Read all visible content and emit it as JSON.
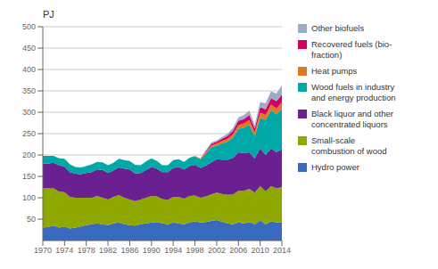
{
  "chart_data": {
    "type": "area",
    "stacked": true,
    "ylabel": "PJ",
    "grid": true,
    "legend": "right",
    "x": [
      1970,
      1971,
      1972,
      1973,
      1974,
      1975,
      1976,
      1977,
      1978,
      1979,
      1980,
      1981,
      1982,
      1983,
      1984,
      1985,
      1986,
      1987,
      1988,
      1989,
      1990,
      1991,
      1992,
      1993,
      1994,
      1995,
      1996,
      1997,
      1998,
      1999,
      2000,
      2001,
      2002,
      2003,
      2004,
      2005,
      2006,
      2007,
      2008,
      2009,
      2010,
      2011,
      2012,
      2013,
      2014
    ],
    "xlim": [
      1970,
      2014
    ],
    "xticks": [
      1970,
      1974,
      1978,
      1982,
      1986,
      1990,
      1994,
      1998,
      2002,
      2006,
      2010,
      2014
    ],
    "ylim": [
      0,
      500
    ],
    "yticks": [
      50,
      100,
      150,
      200,
      250,
      300,
      350,
      400,
      450,
      500
    ],
    "series": [
      {
        "name": "Hydro power",
        "color": "#3a6abf",
        "values": [
          30,
          32,
          35,
          30,
          33,
          28,
          30,
          33,
          36,
          38,
          40,
          38,
          36,
          40,
          42,
          38,
          36,
          35,
          38,
          40,
          42,
          43,
          40,
          38,
          42,
          40,
          38,
          42,
          45,
          42,
          43,
          46,
          48,
          44,
          40,
          38,
          42,
          40,
          43,
          38,
          47,
          38,
          45,
          42,
          43
        ]
      },
      {
        "name": "Small-scale\ncombustion of wood",
        "color": "#8fa800",
        "values": [
          92,
          90,
          87,
          84,
          80,
          74,
          70,
          67,
          64,
          62,
          64,
          62,
          60,
          62,
          64,
          62,
          60,
          57,
          58,
          60,
          62,
          60,
          57,
          57,
          60,
          62,
          60,
          62,
          60,
          58,
          60,
          62,
          64,
          65,
          67,
          70,
          74,
          76,
          78,
          74,
          80,
          77,
          82,
          80,
          82
        ]
      },
      {
        "name": "Black liquor and other\nconcentrated liquors",
        "color": "#6a2090",
        "values": [
          58,
          58,
          60,
          62,
          60,
          58,
          56,
          55,
          58,
          60,
          62,
          65,
          62,
          62,
          65,
          68,
          70,
          65,
          62,
          65,
          68,
          65,
          63,
          65,
          68,
          70,
          68,
          70,
          72,
          70,
          72,
          75,
          78,
          80,
          82,
          85,
          90,
          88,
          85,
          80,
          88,
          85,
          88,
          85,
          88
        ]
      },
      {
        "name": "Wood fuels in industry\nand energy production",
        "color": "#00a8a8",
        "values": [
          18,
          18,
          16,
          16,
          18,
          18,
          16,
          16,
          16,
          18,
          18,
          18,
          18,
          18,
          20,
          20,
          20,
          20,
          18,
          20,
          20,
          18,
          16,
          16,
          18,
          18,
          18,
          20,
          20,
          20,
          28,
          35,
          32,
          38,
          42,
          48,
          55,
          60,
          65,
          52,
          72,
          82,
          90,
          88,
          95
        ]
      },
      {
        "name": "Heat pumps",
        "color": "#e07820",
        "values": [
          0,
          0,
          0,
          0,
          0,
          0,
          0,
          0,
          0,
          0,
          0,
          0,
          0,
          0,
          0,
          0,
          0,
          0,
          0,
          0,
          0,
          0,
          0,
          0,
          0,
          0,
          0,
          0,
          1,
          2,
          3,
          4,
          5,
          6,
          7,
          8,
          9,
          10,
          11,
          9,
          12,
          12,
          13,
          14,
          15
        ]
      },
      {
        "name": "Recovered fuels (bio-\nfraction)",
        "color": "#d40060",
        "values": [
          0,
          0,
          0,
          0,
          0,
          0,
          0,
          0,
          0,
          0,
          0,
          0,
          0,
          0,
          0,
          0,
          0,
          0,
          0,
          0,
          0,
          0,
          0,
          0,
          0,
          0,
          0,
          0,
          0,
          0,
          3,
          4,
          4,
          5,
          7,
          8,
          10,
          10,
          12,
          9,
          13,
          13,
          15,
          17,
          18
        ]
      },
      {
        "name": "Other biofuels",
        "color": "#9aabcc",
        "values": [
          0,
          0,
          0,
          0,
          0,
          0,
          0,
          0,
          0,
          0,
          0,
          0,
          0,
          0,
          0,
          0,
          0,
          0,
          0,
          0,
          0,
          0,
          0,
          0,
          0,
          0,
          0,
          0,
          0,
          0,
          2,
          3,
          3,
          4,
          5,
          6,
          8,
          9,
          10,
          8,
          12,
          14,
          16,
          18,
          22
        ]
      }
    ]
  }
}
